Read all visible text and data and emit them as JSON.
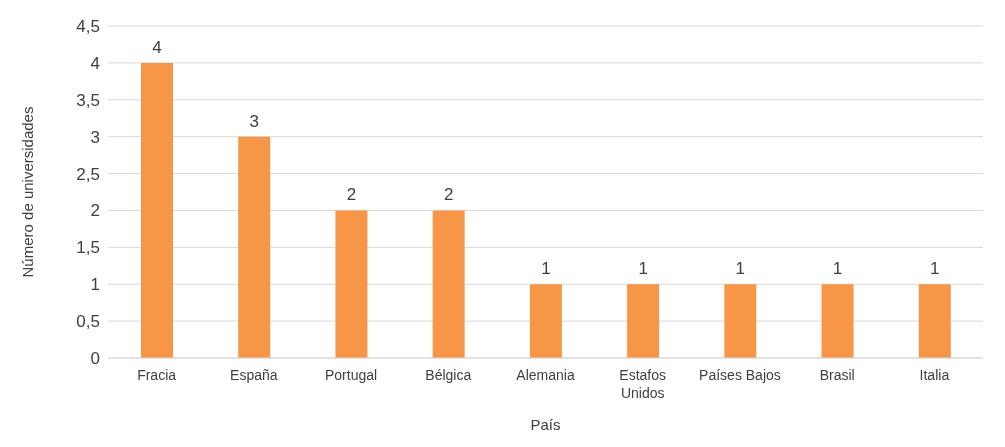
{
  "chart_data": {
    "type": "bar",
    "xlabel": "País",
    "ylabel": "Número de universidades",
    "categories": [
      "Fracia",
      "España",
      "Portugal",
      "Bélgica",
      "Alemania",
      "Estafos Unidos",
      "Países Bajos",
      "Brasil",
      "Italia"
    ],
    "values": [
      4,
      3,
      2,
      2,
      1,
      1,
      1,
      1,
      1
    ],
    "color": "#f79646",
    "ylim": [
      0,
      4.5
    ],
    "yticks": [
      0,
      {
        "value": 0.5,
        "label": "0,5"
      },
      1,
      {
        "value": 1.5,
        "label": "1,5"
      },
      2,
      {
        "value": 2.5,
        "label": "2,5"
      },
      3,
      {
        "value": 3.5,
        "label": "3,5"
      },
      4,
      {
        "value": 4.5,
        "label": "4,5"
      }
    ],
    "grid": "y",
    "data_labels": true
  }
}
